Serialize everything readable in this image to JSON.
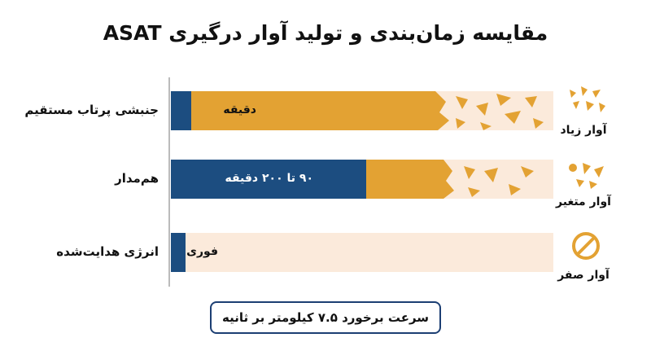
{
  "header": {
    "title": "مقایسه زمان‌بندی و تولید آوار درگیری ASAT"
  },
  "rows": [
    {
      "label": "جنبشی پرتاب مستقیم",
      "timing": "دقیقه",
      "debris": "آوار زیاد"
    },
    {
      "label": "هم‌مدار",
      "timing": "۹۰ تا ۲۰۰ دقیقه",
      "debris": "آوار متغیر"
    },
    {
      "label": "انرژی هدایت‌شده",
      "timing": "فوری",
      "debris": "آوار صفر"
    }
  ],
  "footer": {
    "note": "سرعت برخورد ۷.۵ کیلومتر بر ثانیه"
  }
}
